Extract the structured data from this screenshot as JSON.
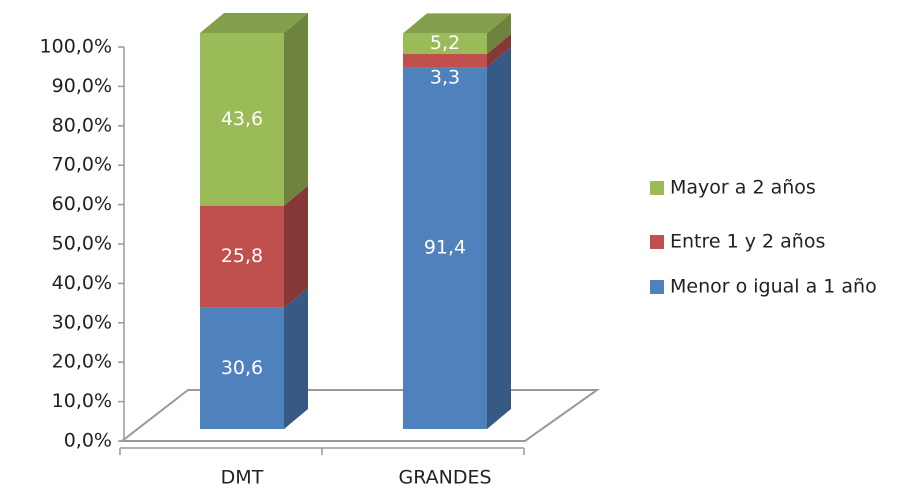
{
  "chart_data": {
    "type": "bar3d_stacked",
    "categories": [
      "DMT",
      "GRANDES"
    ],
    "series": [
      {
        "name": "Menor o igual a 1 año",
        "color": "#4f81bd",
        "values": [
          30.6,
          91.4
        ],
        "value_labels": [
          "30,6",
          "91,4"
        ]
      },
      {
        "name": "Entre 1 y 2 años",
        "color": "#c0504d",
        "values": [
          25.8,
          3.3
        ],
        "value_labels": [
          "25,8",
          "3,3"
        ]
      },
      {
        "name": "Mayor a 2 años",
        "color": "#9bbb59",
        "values": [
          43.6,
          5.2
        ],
        "value_labels": [
          "43,6",
          "5,2"
        ]
      }
    ],
    "ylim": [
      0,
      100
    ],
    "yticks": [
      {
        "value": 0,
        "label": "0,0%"
      },
      {
        "value": 10,
        "label": "10,0%"
      },
      {
        "value": 20,
        "label": "20,0%"
      },
      {
        "value": 30,
        "label": "30,0%"
      },
      {
        "value": 40,
        "label": "40,0%"
      },
      {
        "value": 50,
        "label": "50,0%"
      },
      {
        "value": 60,
        "label": "60,0%"
      },
      {
        "value": 70,
        "label": "70,0%"
      },
      {
        "value": 80,
        "label": "80,0%"
      },
      {
        "value": 90,
        "label": "90,0%"
      },
      {
        "value": 100,
        "label": "100,0%"
      }
    ],
    "legend_position": "right"
  }
}
